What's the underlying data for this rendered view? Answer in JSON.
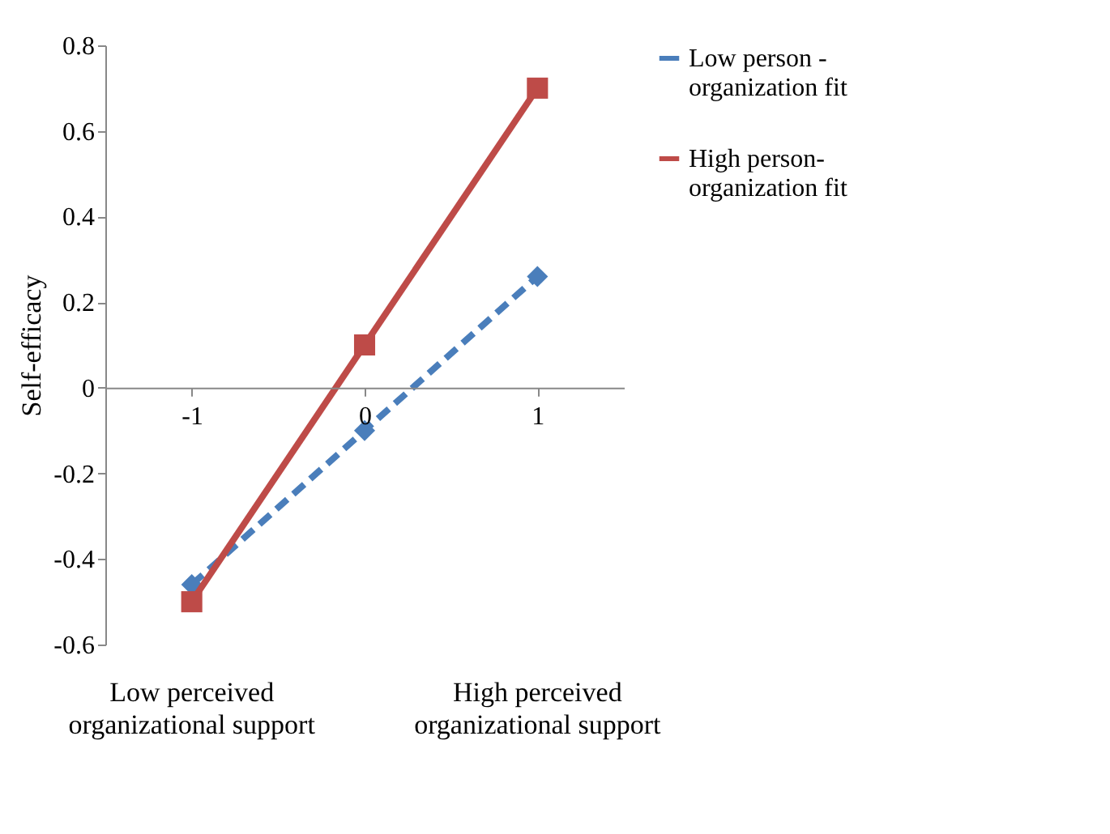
{
  "chart_data": {
    "type": "line",
    "ylabel": "Self-efficacy",
    "categories": [
      "-1",
      "0",
      "1"
    ],
    "ylim": [
      -0.6,
      0.8
    ],
    "yticks": [
      -0.6,
      -0.4,
      -0.2,
      {
        "value": 0,
        "label": "0"
      },
      0.2,
      0.4,
      0.6,
      0.8
    ],
    "grid": false,
    "legend": "right",
    "series": [
      {
        "name": "Low person - organization fit",
        "color": "#4a7ebb",
        "values": [
          -0.46,
          -0.1,
          0.26
        ],
        "marker": "diamond",
        "line_style": "dashed"
      },
      {
        "name": "High person- organization fit",
        "color": "#be4b48",
        "values": [
          -0.5,
          0.1,
          0.7
        ],
        "marker": "square",
        "line_style": "solid"
      }
    ],
    "annotations": [
      "Low perceived organizational support",
      "High perceived organizational support"
    ]
  }
}
